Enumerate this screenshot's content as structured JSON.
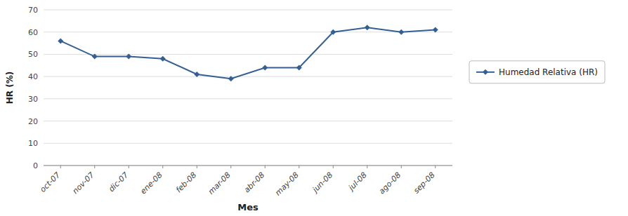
{
  "chart_data": {
    "type": "line",
    "categories": [
      "oct-07",
      "nov-07",
      "dic-07",
      "ene-08",
      "feb-08",
      "mar-08",
      "abr-08",
      "may-08",
      "jun-08",
      "jul-08",
      "ago-08",
      "sep-08"
    ],
    "series": [
      {
        "name": "Humedad Relativa (HR)",
        "color": "#365F91",
        "marker": "diamond",
        "values": [
          56,
          49,
          49,
          48,
          41,
          39,
          44,
          44,
          60,
          62,
          60,
          61
        ]
      }
    ],
    "x_label": "Mes",
    "y_label": "HR (%)",
    "ylim": [
      0,
      70
    ],
    "yticks": [
      0,
      10,
      20,
      30,
      40,
      50,
      60,
      70
    ],
    "grid": "y",
    "legend": "right"
  }
}
